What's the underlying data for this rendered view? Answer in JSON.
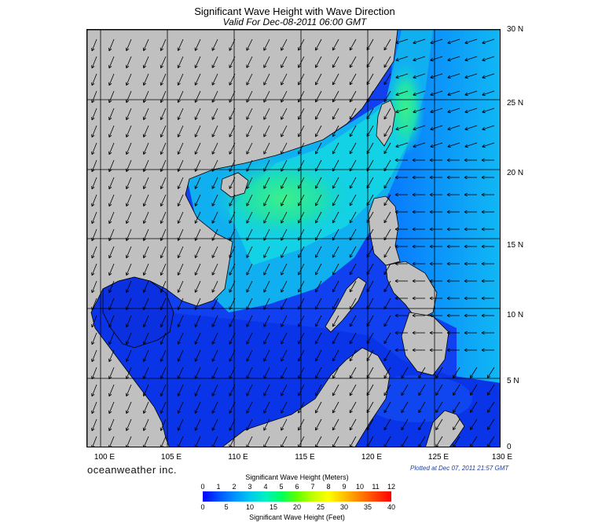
{
  "title": "Significant Wave Height with Wave Direction",
  "subtitle": "Valid For Dec-08-2011 06:00 GMT",
  "brand": "oceanweather inc.",
  "plotted": "Plotted at Dec 07, 2011 21:57 GMT",
  "map": {
    "lon_range": [
      99,
      130
    ],
    "lat_range": [
      0,
      30
    ],
    "lat_labels": [
      "30 N",
      "25 N",
      "20 N",
      "15 N",
      "10 N",
      "5 N",
      "0"
    ],
    "lon_labels": [
      "100 E",
      "105 E",
      "110 E",
      "115 E",
      "120 E",
      "125 E",
      "130 E"
    ],
    "land_color": "#c0c0c0",
    "arrow_color": "#000000"
  },
  "colorbar": {
    "title_top": "Significant Wave Height (Meters)",
    "title_bottom": "Significant Wave Height (Feet)",
    "meters_ticks": [
      "0",
      "1",
      "2",
      "3",
      "4",
      "5",
      "6",
      "7",
      "8",
      "9",
      "10",
      "11",
      "12"
    ],
    "feet_ticks": [
      "0",
      "5",
      "10",
      "15",
      "20",
      "25",
      "30",
      "35",
      "40"
    ],
    "colors": [
      "#0000ff",
      "#0050ff",
      "#0090ff",
      "#00c8f0",
      "#00f0c0",
      "#00ff60",
      "#60ff00",
      "#c0ff00",
      "#ffff00",
      "#ffc000",
      "#ff8000",
      "#ff4000",
      "#ff0000"
    ]
  }
}
